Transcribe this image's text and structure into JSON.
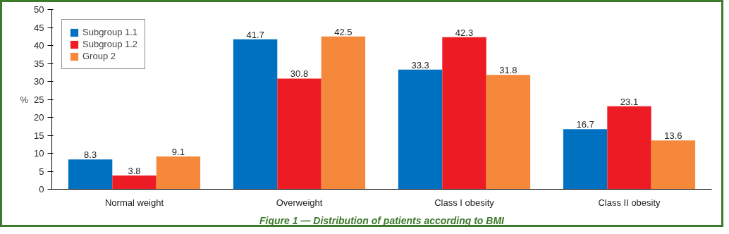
{
  "chart_data": {
    "type": "bar",
    "title": "Figure 1 — Distribution of patients according to BMI",
    "ylabel": "%",
    "categories": [
      "Normal weight",
      "Overweight",
      "Class I obesity",
      "Class II obesity"
    ],
    "series": [
      {
        "name": "Subgroup 1.1",
        "color": "#0070c0",
        "values": [
          8.3,
          41.7,
          33.3,
          16.7
        ]
      },
      {
        "name": "Subgroup 1.2",
        "color": "#ed1c24",
        "values": [
          3.8,
          30.8,
          42.3,
          23.1
        ]
      },
      {
        "name": "Group 2",
        "color": "#f5883a",
        "values": [
          9.1,
          42.5,
          31.8,
          13.6
        ]
      }
    ],
    "ylim": [
      0,
      50
    ],
    "yticks": [
      0,
      5,
      10,
      15,
      20,
      25,
      30,
      35,
      40,
      45,
      50
    ],
    "grid": false,
    "legend": "top left",
    "data_labels": true
  }
}
